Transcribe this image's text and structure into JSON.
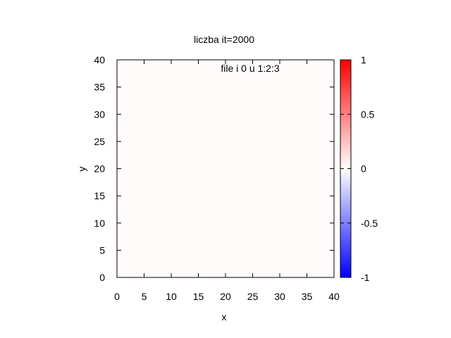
{
  "chart_data": {
    "type": "heatmap",
    "title": "liczba it=2000",
    "xlabel": "x",
    "ylabel": "y",
    "xlim": [
      0,
      40
    ],
    "ylim": [
      0,
      40
    ],
    "x_ticks": [
      0,
      5,
      10,
      15,
      20,
      25,
      30,
      35,
      40
    ],
    "y_ticks": [
      0,
      5,
      10,
      15,
      20,
      25,
      30,
      35,
      40
    ],
    "legend_entry": "file i 0 u 1:2:3",
    "legend_position": "top-center",
    "field_value": 0.01,
    "field_color": "#fffbfb",
    "colorbar": {
      "range": [
        -1,
        1
      ],
      "ticks": [
        1,
        0.5,
        0,
        -0.5,
        -1
      ],
      "tick_labels": [
        "1",
        "0.5",
        "0",
        "-0.5",
        "-1"
      ],
      "colors": {
        "low": "#0000ff",
        "mid": "#ffffff",
        "high": "#ff0000"
      }
    }
  }
}
